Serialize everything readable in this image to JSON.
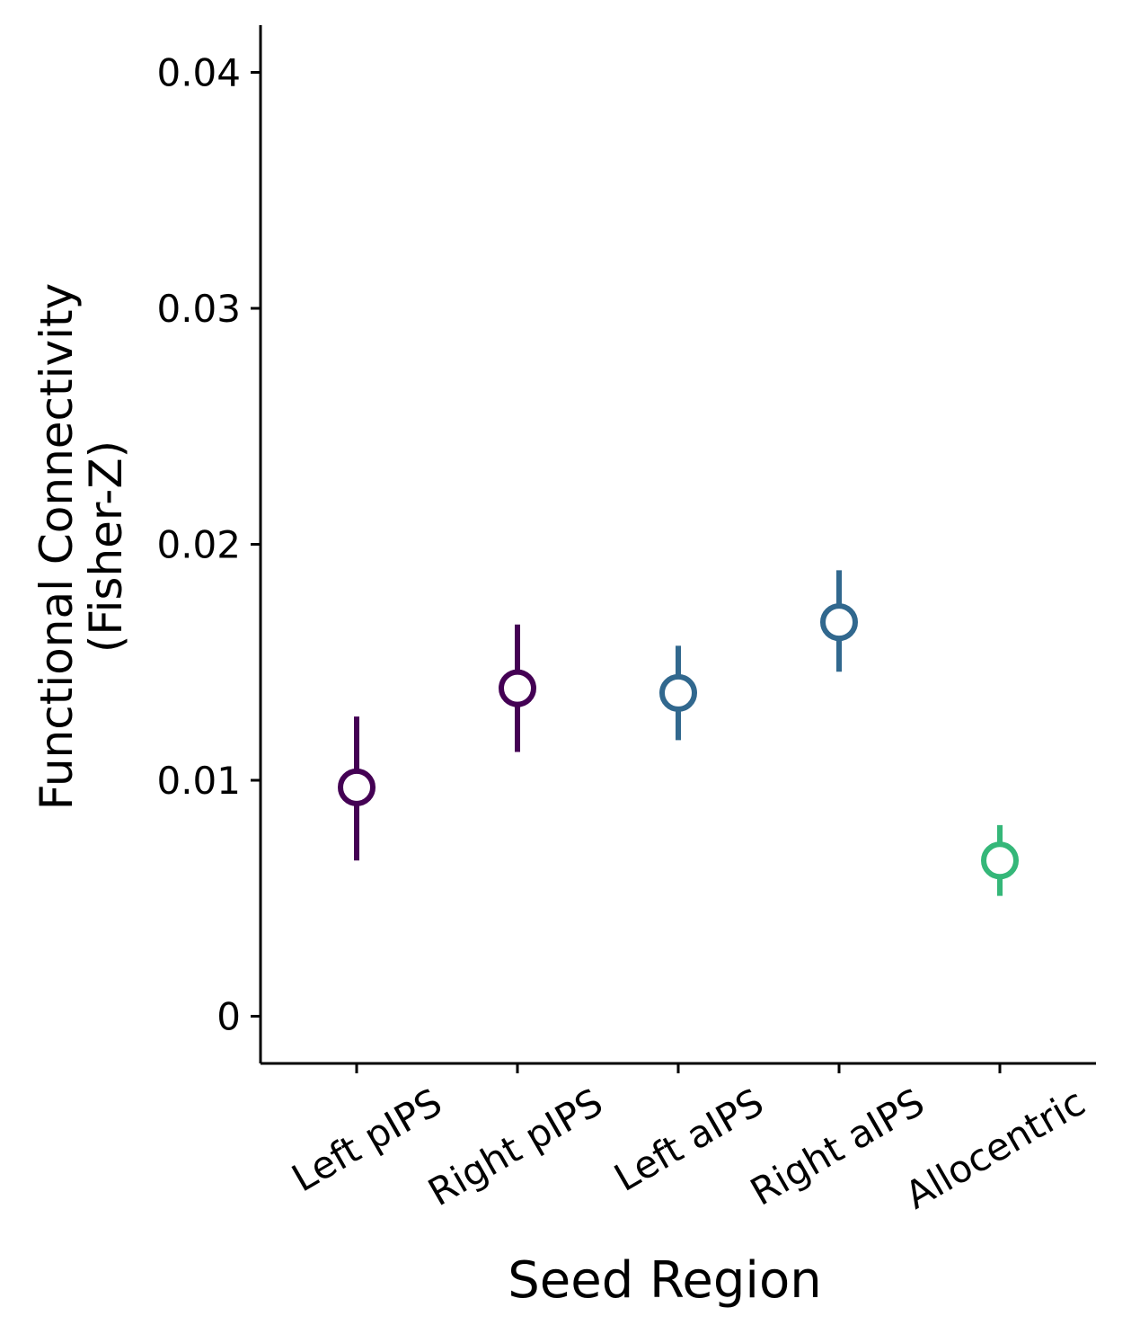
{
  "chart_data": {
    "type": "scatter",
    "xlabel": "Seed Region",
    "ylabel_lines": [
      "Functional Connectivity",
      "(Fisher-Z)"
    ],
    "categories": [
      "Left pIPS",
      "Right pIPS",
      "Left aIPS",
      "Right aIPS",
      "Allocentric"
    ],
    "yticks": [
      0,
      0.01,
      0.02,
      0.03,
      0.04
    ],
    "ytick_labels": [
      "0",
      "0.01",
      "0.02",
      "0.03",
      "0.04"
    ],
    "ylim": [
      -0.002,
      0.042
    ],
    "grid": false,
    "points": [
      {
        "category": "Left pIPS",
        "value": 0.0097,
        "lower": 0.0066,
        "upper": 0.0127,
        "color": "#440154"
      },
      {
        "category": "Right pIPS",
        "value": 0.0139,
        "lower": 0.0112,
        "upper": 0.0166,
        "color": "#440154"
      },
      {
        "category": "Left aIPS",
        "value": 0.0137,
        "lower": 0.0117,
        "upper": 0.0157,
        "color": "#31688e"
      },
      {
        "category": "Right aIPS",
        "value": 0.0167,
        "lower": 0.0146,
        "upper": 0.0189,
        "color": "#31688e"
      },
      {
        "category": "Allocentric",
        "value": 0.0066,
        "lower": 0.0051,
        "upper": 0.0081,
        "color": "#35b779"
      }
    ]
  }
}
